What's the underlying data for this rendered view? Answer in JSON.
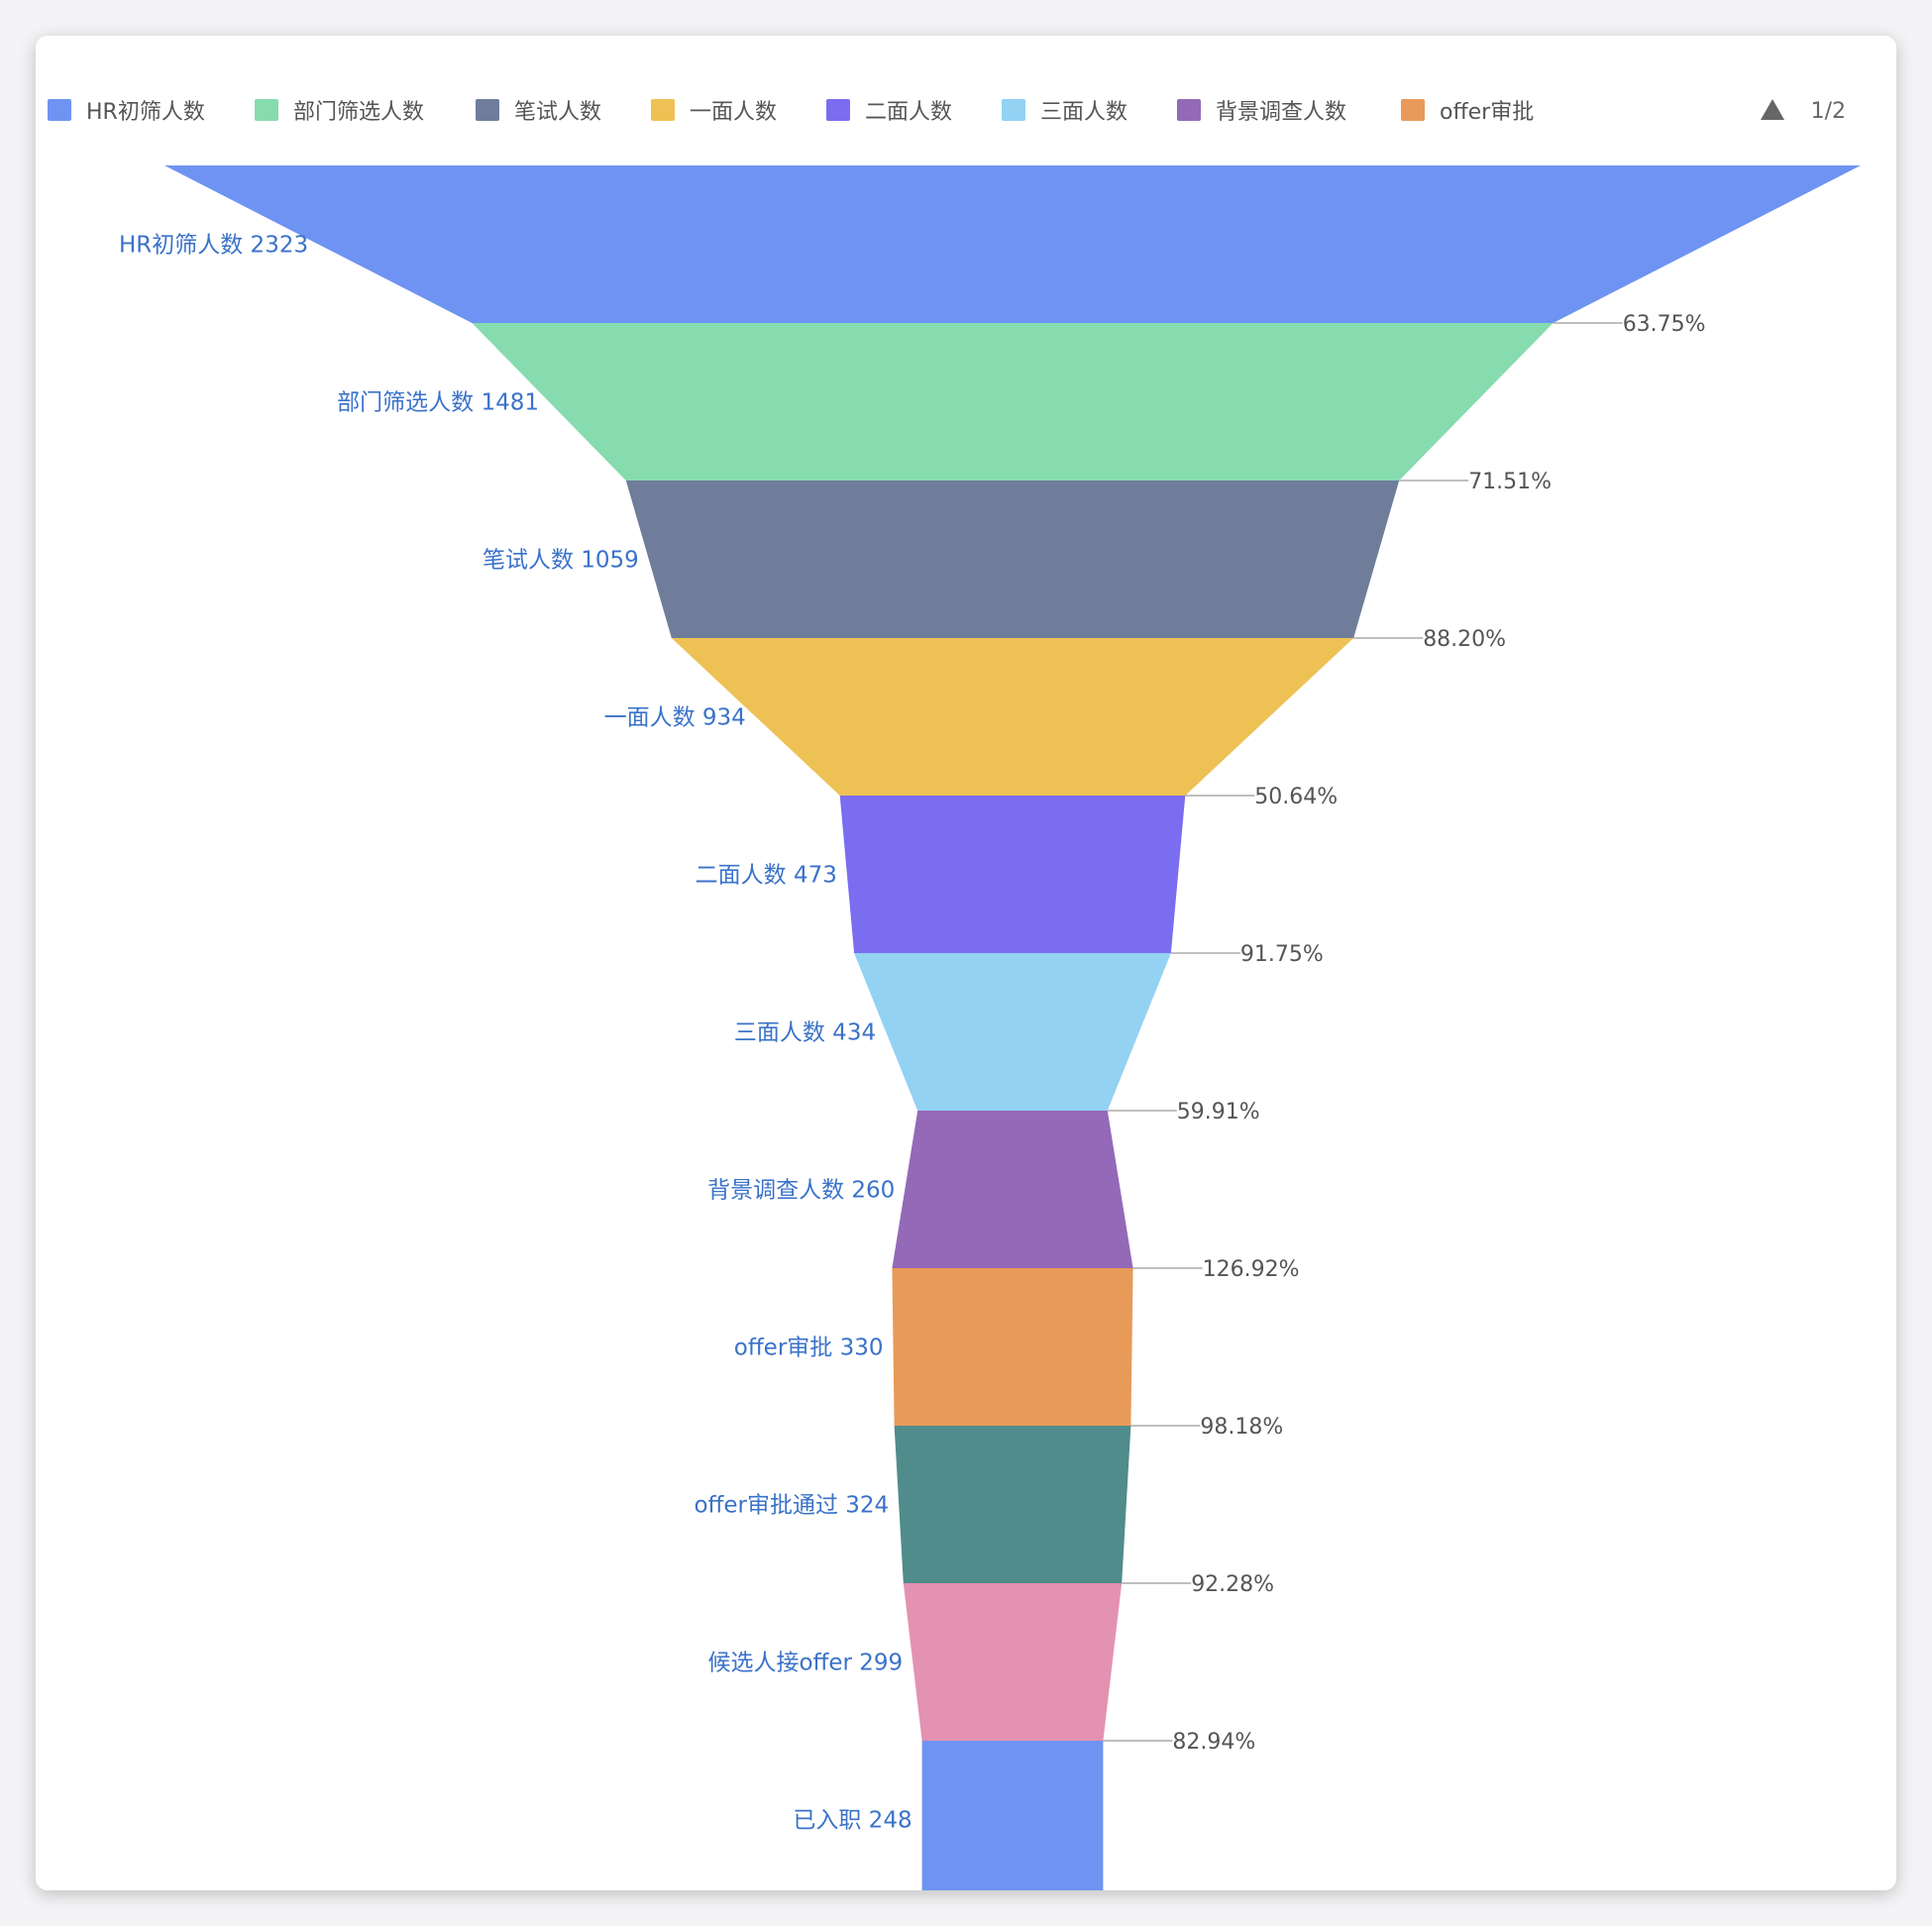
{
  "chart_data": {
    "type": "funnel",
    "stages": [
      {
        "name": "HR初筛人数",
        "value": 2323,
        "color": "#6e93f2"
      },
      {
        "name": "部门筛选人数",
        "value": 1481,
        "color": "#86dbaf",
        "conversion": "63.75%"
      },
      {
        "name": "笔试人数",
        "value": 1059,
        "color": "#6f7d9b",
        "conversion": "71.51%"
      },
      {
        "name": "一面人数",
        "value": 934,
        "color": "#eec155",
        "conversion": "88.20%"
      },
      {
        "name": "二面人数",
        "value": 473,
        "color": "#7a6df0",
        "conversion": "50.64%"
      },
      {
        "name": "三面人数",
        "value": 434,
        "color": "#93d2f3",
        "conversion": "91.75%"
      },
      {
        "name": "背景调查人数",
        "value": 260,
        "color": "#9469b8",
        "conversion": "59.91%"
      },
      {
        "name": "offer审批",
        "value": 330,
        "color": "#e89a58",
        "conversion": "126.92%"
      },
      {
        "name": "offer审批通过",
        "value": 324,
        "color": "#508c8b",
        "conversion": "98.18%"
      },
      {
        "name": "候选人接offer",
        "value": 299,
        "color": "#e392b2",
        "conversion": "92.28%"
      },
      {
        "name": "已入职",
        "value": 248,
        "color": "#6e93f2",
        "conversion": "82.94%"
      }
    ],
    "legend": {
      "items": [
        "HR初筛人数",
        "部门筛选人数",
        "笔试人数",
        "一面人数",
        "二面人数",
        "三面人数",
        "背景调查人数",
        "offer审批"
      ],
      "placement": "top",
      "page": "1/2"
    },
    "colors": {
      "label_text": "#3a72c9",
      "ratio_text": "#555555",
      "leader_line": "#aaaaaa"
    }
  }
}
